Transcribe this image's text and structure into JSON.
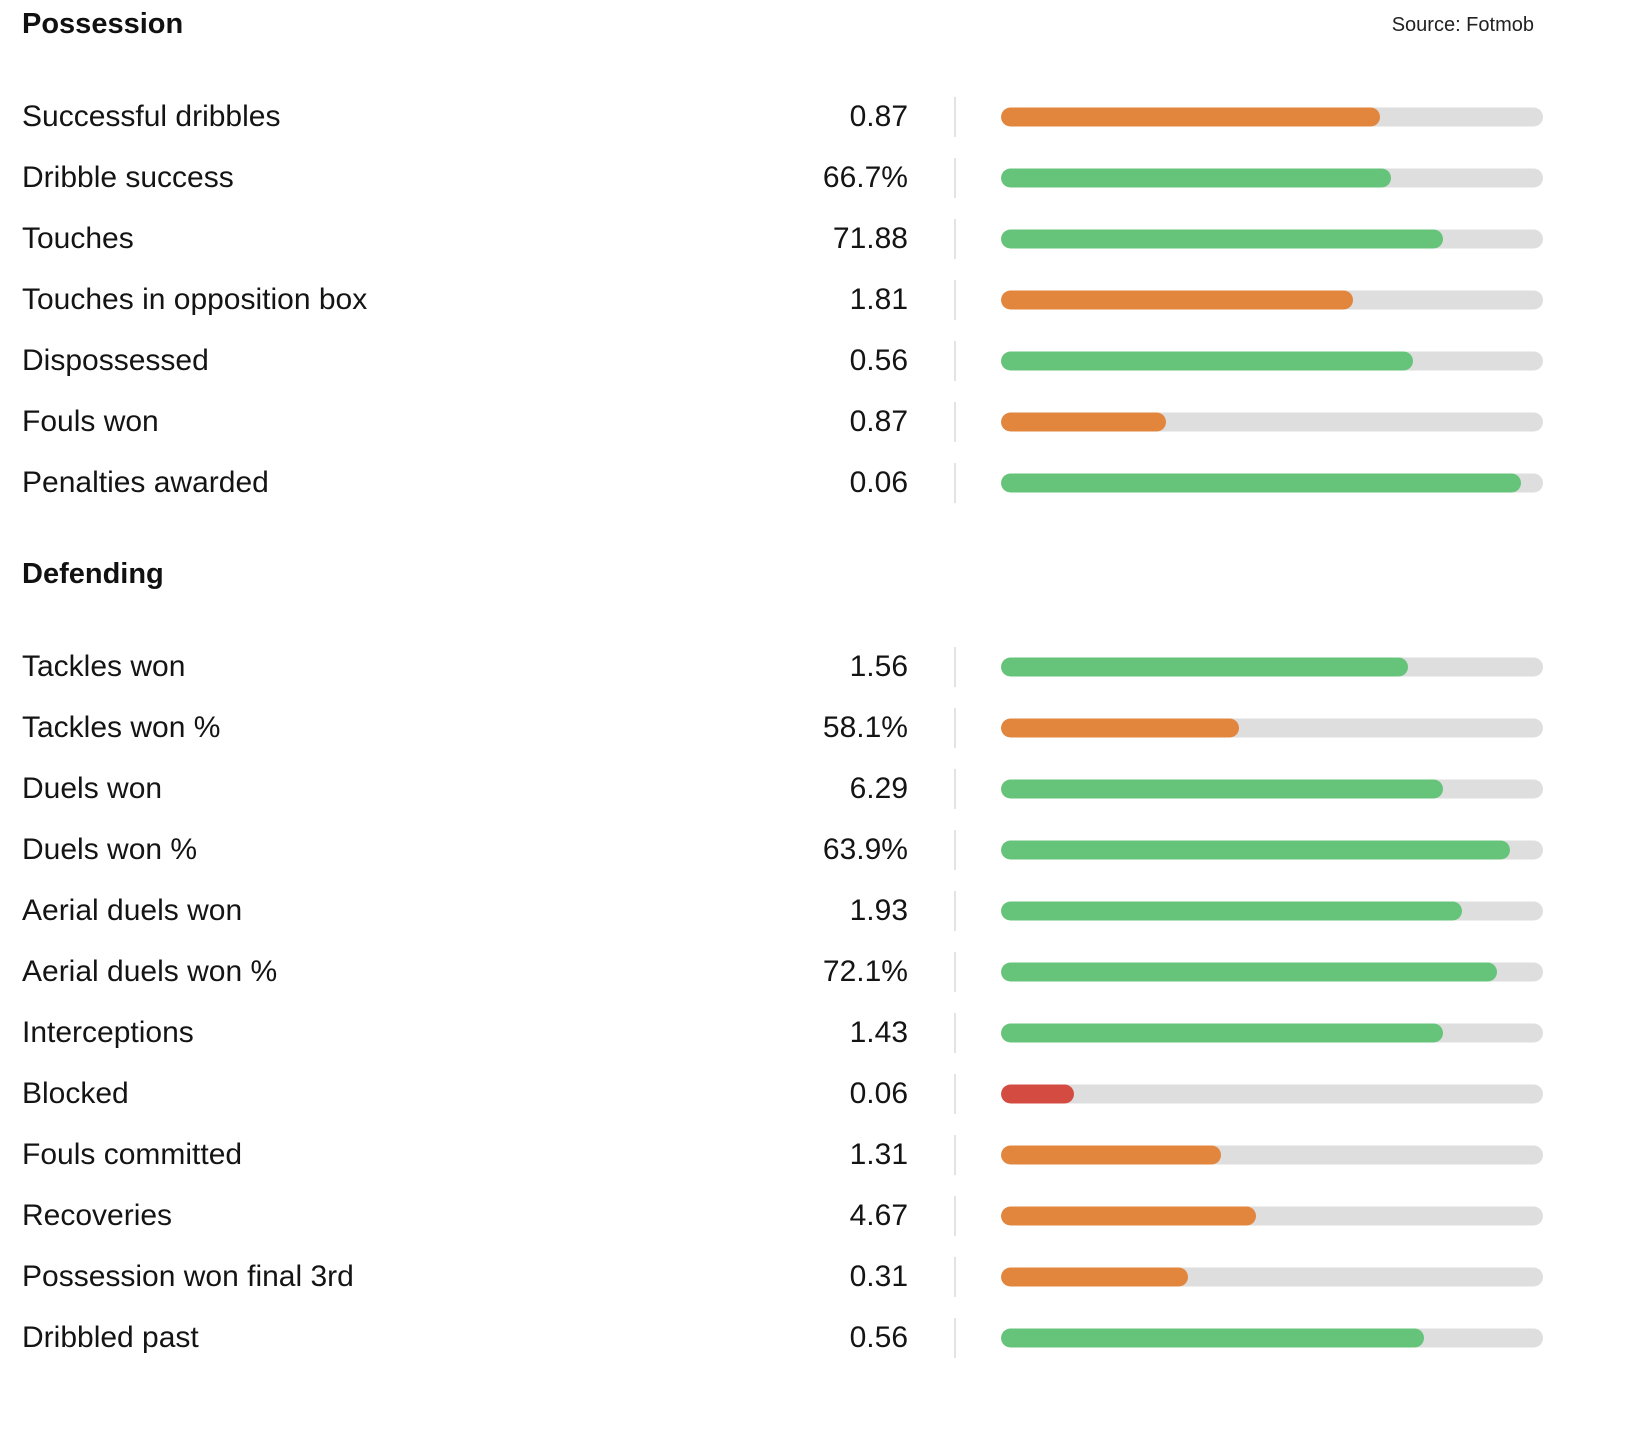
{
  "source_label": "Source: Fotmob",
  "colors": {
    "good": "#66c47a",
    "average": "#e2853d",
    "poor": "#d44b42",
    "track": "#dedede"
  },
  "sections": [
    {
      "title": "Possession",
      "stats": [
        {
          "label": "Successful dribbles",
          "value": "0.87",
          "fill": 0.7,
          "rating": "average"
        },
        {
          "label": "Dribble success",
          "value": "66.7%",
          "fill": 0.72,
          "rating": "good"
        },
        {
          "label": "Touches",
          "value": "71.88",
          "fill": 0.815,
          "rating": "good"
        },
        {
          "label": "Touches in opposition box",
          "value": "1.81",
          "fill": 0.65,
          "rating": "average"
        },
        {
          "label": "Dispossessed",
          "value": "0.56",
          "fill": 0.76,
          "rating": "good"
        },
        {
          "label": "Fouls won",
          "value": "0.87",
          "fill": 0.305,
          "rating": "average"
        },
        {
          "label": "Penalties awarded",
          "value": "0.06",
          "fill": 0.96,
          "rating": "good"
        }
      ]
    },
    {
      "title": "Defending",
      "stats": [
        {
          "label": "Tackles won",
          "value": "1.56",
          "fill": 0.75,
          "rating": "good"
        },
        {
          "label": "Tackles won %",
          "value": "58.1%",
          "fill": 0.44,
          "rating": "average"
        },
        {
          "label": "Duels won",
          "value": "6.29",
          "fill": 0.815,
          "rating": "good"
        },
        {
          "label": "Duels won %",
          "value": "63.9%",
          "fill": 0.94,
          "rating": "good"
        },
        {
          "label": "Aerial duels won",
          "value": "1.93",
          "fill": 0.85,
          "rating": "good"
        },
        {
          "label": "Aerial duels won %",
          "value": "72.1%",
          "fill": 0.915,
          "rating": "good"
        },
        {
          "label": "Interceptions",
          "value": "1.43",
          "fill": 0.815,
          "rating": "good"
        },
        {
          "label": "Blocked",
          "value": "0.06",
          "fill": 0.135,
          "rating": "poor"
        },
        {
          "label": "Fouls committed",
          "value": "1.31",
          "fill": 0.405,
          "rating": "average"
        },
        {
          "label": "Recoveries",
          "value": "4.67",
          "fill": 0.47,
          "rating": "average"
        },
        {
          "label": "Possession won final 3rd",
          "value": "0.31",
          "fill": 0.345,
          "rating": "average"
        },
        {
          "label": "Dribbled past",
          "value": "0.56",
          "fill": 0.78,
          "rating": "good"
        }
      ]
    }
  ]
}
